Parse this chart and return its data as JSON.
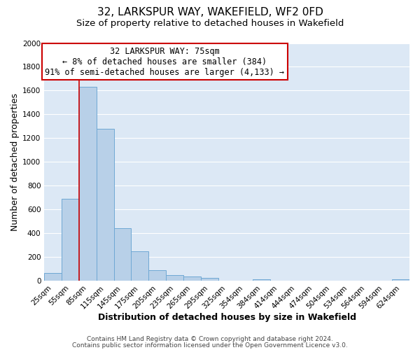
{
  "title1": "32, LARKSPUR WAY, WAKEFIELD, WF2 0FD",
  "title2": "Size of property relative to detached houses in Wakefield",
  "xlabel": "Distribution of detached houses by size in Wakefield",
  "ylabel": "Number of detached properties",
  "bar_color": "#b8d0e8",
  "bar_edge_color": "#6fa8d4",
  "background_color": "#dce8f5",
  "grid_color": "#ffffff",
  "annotation_box_color": "#ffffff",
  "annotation_box_edge_color": "#cc0000",
  "vline_color": "#cc0000",
  "categories": [
    "25sqm",
    "55sqm",
    "85sqm",
    "115sqm",
    "145sqm",
    "175sqm",
    "205sqm",
    "235sqm",
    "265sqm",
    "295sqm",
    "325sqm",
    "354sqm",
    "384sqm",
    "414sqm",
    "444sqm",
    "474sqm",
    "504sqm",
    "534sqm",
    "564sqm",
    "594sqm",
    "624sqm"
  ],
  "values": [
    65,
    690,
    1630,
    1280,
    440,
    250,
    90,
    50,
    35,
    25,
    0,
    0,
    15,
    0,
    0,
    0,
    0,
    0,
    0,
    0,
    10
  ],
  "ylim": [
    0,
    2000
  ],
  "yticks": [
    0,
    200,
    400,
    600,
    800,
    1000,
    1200,
    1400,
    1600,
    1800,
    2000
  ],
  "vline_x_idx": 2,
  "ann_line1": "32 LARKSPUR WAY: 75sqm",
  "ann_line2": "← 8% of detached houses are smaller (384)",
  "ann_line3": "91% of semi-detached houses are larger (4,133) →",
  "footer1": "Contains HM Land Registry data © Crown copyright and database right 2024.",
  "footer2": "Contains public sector information licensed under the Open Government Licence v3.0.",
  "title_fontsize": 11,
  "subtitle_fontsize": 9.5,
  "axis_label_fontsize": 9,
  "tick_fontsize": 7.5,
  "annotation_fontsize": 8.5,
  "footer_fontsize": 6.5
}
